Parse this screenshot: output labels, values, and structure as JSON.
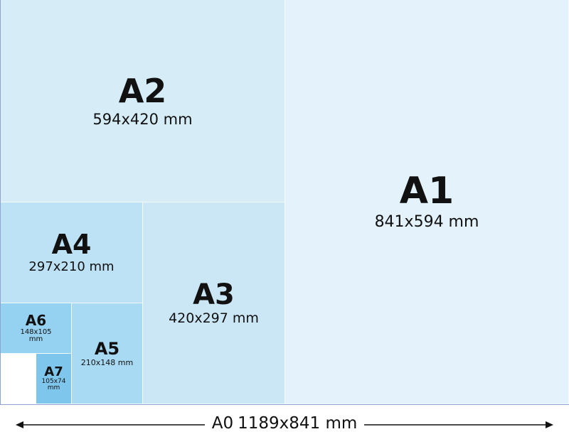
{
  "sheets": [
    {
      "name": "A1",
      "dims": "841x594 mm",
      "color": "#e3f2fb"
    },
    {
      "name": "A2",
      "dims": "594x420 mm",
      "color": "#d6edf8"
    },
    {
      "name": "A3",
      "dims": "420x297 mm",
      "color": "#cbe7f6"
    },
    {
      "name": "A4",
      "dims": "297x210 mm",
      "color": "#bee2f5"
    },
    {
      "name": "A5",
      "dims": "210x148 mm",
      "color": "#a9daf3"
    },
    {
      "name": "A6",
      "dims": "148x105 mm",
      "color": "#95d1f0"
    },
    {
      "name": "A7",
      "dims": "105x74 mm",
      "color": "#7ec6ec"
    }
  ],
  "a0": {
    "name": "A0",
    "dims": "1189x841 mm"
  },
  "border_color": "#8ea3cf"
}
